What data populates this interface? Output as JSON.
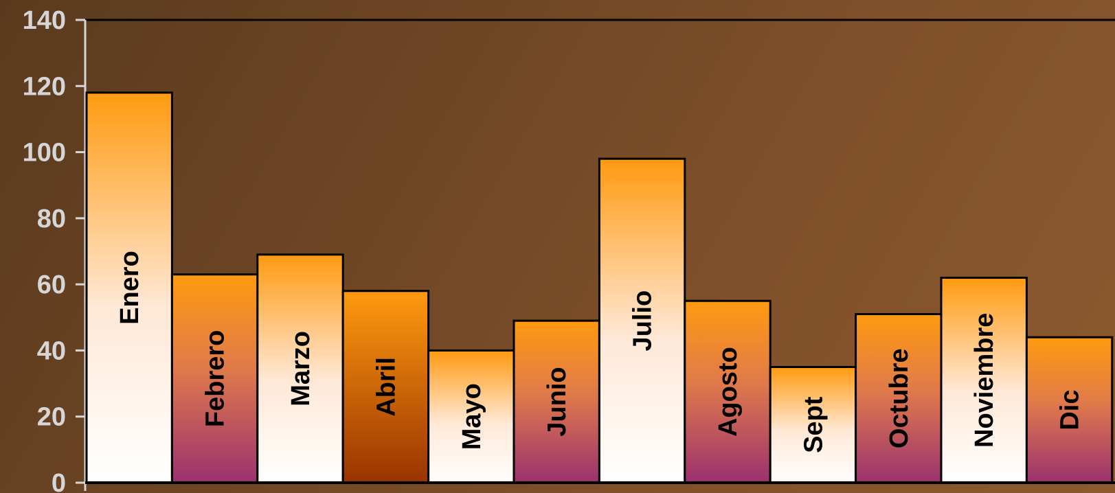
{
  "chart_data": {
    "type": "bar",
    "categories": [
      "Enero",
      "Febrero",
      "Marzo",
      "Abril",
      "Mayo",
      "Junio",
      "Julio",
      "Agosto",
      "Sept",
      "Octubre",
      "Noviembre",
      "Dic"
    ],
    "values": [
      118,
      63,
      69,
      58,
      40,
      49,
      98,
      55,
      35,
      51,
      62,
      44
    ],
    "bar_styles": [
      "cream",
      "purple",
      "cream",
      "brown",
      "cream",
      "purple",
      "cream",
      "purple",
      "cream",
      "purple",
      "cream",
      "purple"
    ],
    "yticks": [
      "0",
      "20",
      "40",
      "60",
      "80",
      "100",
      "120",
      "140"
    ],
    "ylim": [
      0,
      140
    ],
    "title": "",
    "xlabel": "",
    "ylabel": "",
    "grid": false,
    "legend": "none",
    "colors": {
      "bar_top": "#ff9a10",
      "bar_bottom_cream": "#ffffff",
      "bar_bottom_purple": "#9a3170",
      "bar_bottom_brown": "#9a3300",
      "tick_text": "#d6d6d6",
      "axis": "#d6d6d6"
    }
  }
}
